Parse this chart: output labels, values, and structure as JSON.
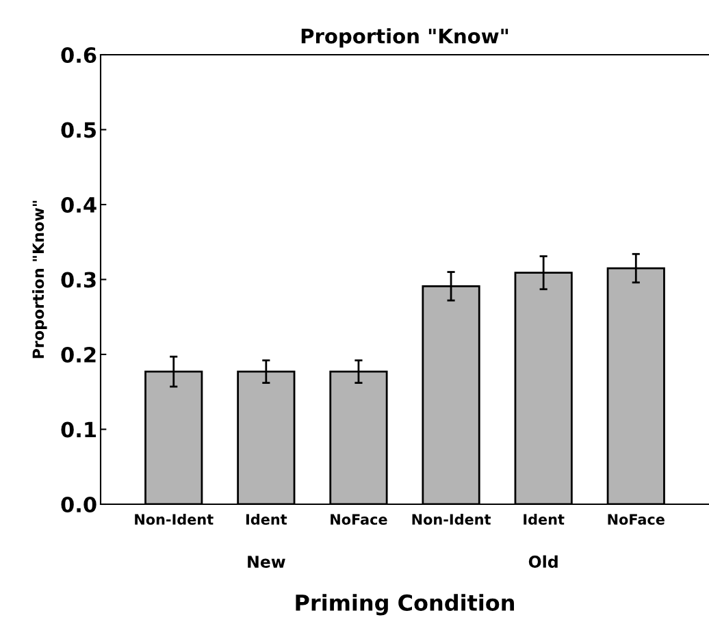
{
  "chart_data": {
    "type": "bar",
    "title": "Proportion \"Know\"",
    "xlabel": "Priming Condition",
    "ylabel": "Proportion \"Know\"",
    "categories": [
      "Non-Ident",
      "Ident",
      "NoFace",
      "Non-Ident",
      "Ident",
      "NoFace"
    ],
    "values": [
      0.177,
      0.177,
      0.177,
      0.291,
      0.309,
      0.315
    ],
    "errors": [
      0.02,
      0.015,
      0.015,
      0.019,
      0.022,
      0.019
    ],
    "color": "#b4b4b4",
    "ylim": [
      0,
      0.6
    ],
    "yticks": [
      {
        "value": 0,
        "label": "0.0"
      },
      0.1,
      0.2,
      0.3,
      0.4,
      0.5,
      0.6
    ],
    "annotations": [
      "New",
      "Old"
    ],
    "grid": false,
    "legend": false
  }
}
